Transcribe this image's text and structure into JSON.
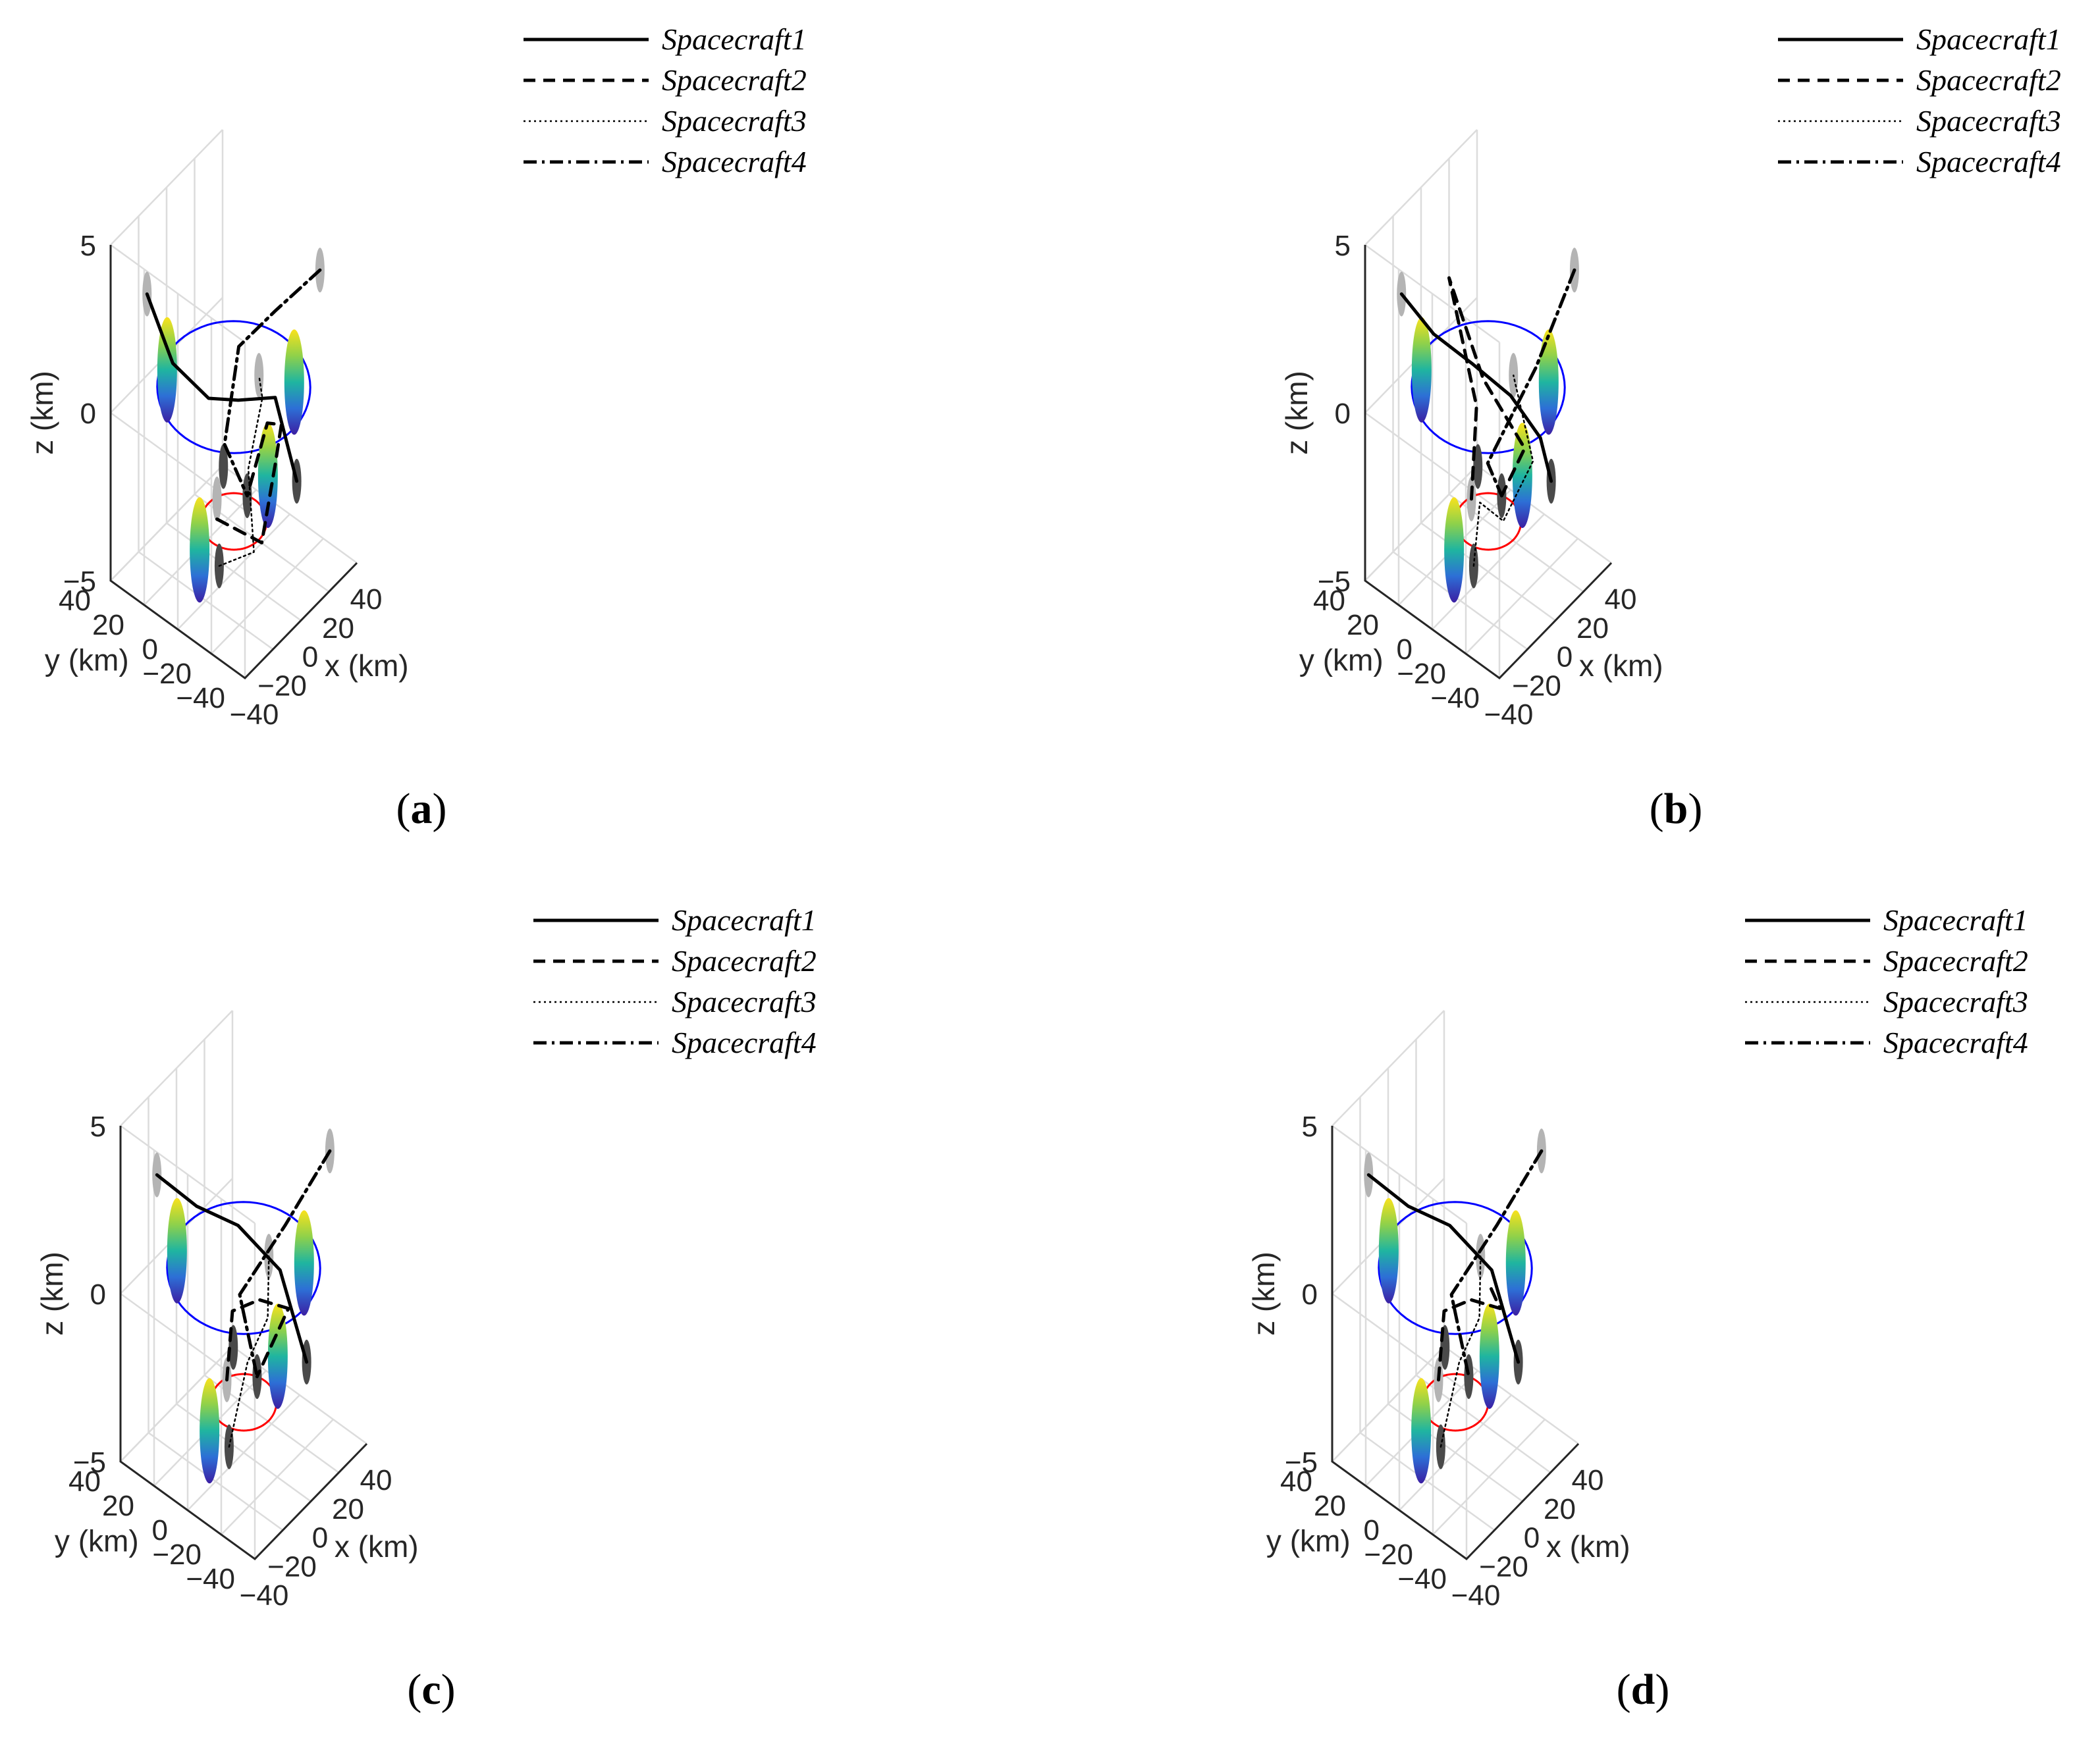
{
  "figure": {
    "panels": [
      {
        "caption_label": "a",
        "chart_data": {
          "type": "line3d",
          "title": "",
          "xlabel": "x (km)",
          "ylabel": "y (km)",
          "zlabel": "z (km)",
          "xlim": [
            -40,
            40
          ],
          "ylim": [
            -40,
            40
          ],
          "zlim": [
            -5,
            5
          ],
          "xticks": [
            "−40",
            "−20",
            "0",
            "20",
            "40"
          ],
          "yticks": [
            "−40",
            "−20",
            "0",
            "20",
            "40"
          ],
          "zticks": [
            "−5",
            "0",
            "5"
          ],
          "legend": [
            "Spacecraft1",
            "Spacecraft2",
            "Spacecraft3",
            "Spacecraft4"
          ],
          "series": [
            {
              "name": "Spacecraft1",
              "style": "solid",
              "points": [
                [
                  -26,
                  30,
                  3.3
                ],
                [
                  -22,
                  18,
                  1.5
                ],
                [
                  -12,
                  5,
                  0.5
                ],
                [
                  -4,
                  -6,
                  0.5
                ],
                [
                  8,
                  -18,
                  0.5
                ],
                [
                  9,
                  -30,
                  -1.6
                ]
              ]
            },
            {
              "name": "Spacecraft2",
              "style": "dashed",
              "points": [
                [
                  -30,
                  -15,
                  -1.6
                ],
                [
                  -10,
                  -25,
                  -2.8
                ],
                [
                  8,
                  -18,
                  -1.5
                ],
                [
                  22,
                  -10,
                  -1.2
                ],
                [
                  24,
                  0,
                  -1.6
                ],
                [
                  24,
                  12,
                  -4.2
                ]
              ]
            },
            {
              "name": "Spacecraft3",
              "style": "dotted",
              "points": [
                [
                  -32,
                  -18,
                  -2.8
                ],
                [
                  -12,
                  -22,
                  -3.1
                ],
                [
                  8,
                  -2,
                  -2.2
                ],
                [
                  30,
                  8,
                  -1.4
                ],
                [
                  30,
                  10,
                  -0.8
                ]
              ]
            },
            {
              "name": "Spacecraft4",
              "style": "dashdot",
              "points": [
                [
                  28,
                  -28,
                  3.8
                ],
                [
                  20,
                  -8,
                  2.2
                ],
                [
                  18,
                  12,
                  0.5
                ],
                [
                  15,
                  18,
                  -2.5
                ],
                [
                  24,
                  12,
                  -4.2
                ]
              ]
            }
          ],
          "orbits": [
            {
              "name": "outer",
              "color": "#0000ff",
              "radius": 35,
              "z": 0.5
            },
            {
              "name": "inner",
              "color": "#ff0000",
              "radius": 15,
              "z": -3.5
            }
          ]
        }
      },
      {
        "caption_label": "b",
        "chart_data": {
          "type": "line3d",
          "title": "",
          "xlabel": "x (km)",
          "ylabel": "y (km)",
          "zlabel": "z (km)",
          "xlim": [
            -40,
            40
          ],
          "ylim": [
            -40,
            40
          ],
          "zlim": [
            -5,
            5
          ],
          "xticks": [
            "−40",
            "−20",
            "0",
            "20",
            "40"
          ],
          "yticks": [
            "−40",
            "−20",
            "0",
            "20",
            "40"
          ],
          "zticks": [
            "−5",
            "0",
            "5"
          ],
          "legend": [
            "Spacecraft1",
            "Spacecraft2",
            "Spacecraft3",
            "Spacecraft4"
          ],
          "series": [
            {
              "name": "Spacecraft1",
              "style": "solid",
              "points": [
                [
                  -26,
                  30,
                  3.3
                ],
                [
                  -15,
                  20,
                  2.0
                ],
                [
                  -2,
                  8,
                  1.0
                ],
                [
                  10,
                  -5,
                  0.0
                ],
                [
                  18,
                  -16,
                  -1.2
                ],
                [
                  9,
                  -30,
                  -1.6
                ]
              ]
            },
            {
              "name": "Spacecraft2",
              "style": "dashed",
              "points": [
                [
                  -30,
                  -15,
                  -1.0
                ],
                [
                  -18,
                  -8,
                  1.0
                ],
                [
                  -4,
                  20,
                  3.2
                ],
                [
                  6,
                  8,
                  0.2
                ],
                [
                  20,
                  -5,
                  -2.0
                ],
                [
                  24,
                  12,
                  -4.2
                ]
              ]
            },
            {
              "name": "Spacecraft3",
              "style": "dotted",
              "points": [
                [
                  -32,
                  -18,
                  -2.8
                ],
                [
                  -18,
                  -10,
                  -1.8
                ],
                [
                  6,
                  -4,
                  -3.6
                ],
                [
                  20,
                  -10,
                  -2.2
                ],
                [
                  30,
                  10,
                  -0.8
                ]
              ]
            },
            {
              "name": "Spacecraft4",
              "style": "dashdot",
              "points": [
                [
                  28,
                  -28,
                  3.8
                ],
                [
                  22,
                  -10,
                  0.5
                ],
                [
                  14,
                  12,
                  -2.8
                ],
                [
                  24,
                  12,
                  -4.2
                ]
              ]
            }
          ],
          "orbits": [
            {
              "name": "outer",
              "color": "#0000ff",
              "radius": 35,
              "z": 0.5
            },
            {
              "name": "inner",
              "color": "#ff0000",
              "radius": 15,
              "z": -3.5
            }
          ]
        }
      },
      {
        "caption_label": "c",
        "chart_data": {
          "type": "line3d",
          "title": "",
          "xlabel": "x (km)",
          "ylabel": "y (km)",
          "zlabel": "z (km)",
          "xlim": [
            -40,
            40
          ],
          "ylim": [
            -40,
            40
          ],
          "zlim": [
            -5,
            5
          ],
          "xticks": [
            "−40",
            "−20",
            "0",
            "20",
            "40"
          ],
          "yticks": [
            "−40",
            "−20",
            "0",
            "20",
            "40"
          ],
          "zticks": [
            "−5",
            "0",
            "5"
          ],
          "legend": [
            "Spacecraft1",
            "Spacecraft2",
            "Spacecraft3",
            "Spacecraft4"
          ],
          "series": [
            {
              "name": "Spacecraft1",
              "style": "solid",
              "points": [
                [
                  -26,
                  30,
                  3.3
                ],
                [
                  -12,
                  18,
                  2.2
                ],
                [
                  2,
                  5,
                  1.5
                ],
                [
                  14,
                  -10,
                  0.2
                ],
                [
                  9,
                  -30,
                  -1.6
                ]
              ]
            },
            {
              "name": "Spacecraft2",
              "style": "dashed",
              "points": [
                [
                  -30,
                  -15,
                  -1.0
                ],
                [
                  -14,
                  -5,
                  0.0
                ],
                [
                  4,
                  -6,
                  -0.4
                ],
                [
                  20,
                  -10,
                  -1.2
                ],
                [
                  24,
                  12,
                  -4.2
                ]
              ]
            },
            {
              "name": "Spacecraft3",
              "style": "dotted",
              "points": [
                [
                  -32,
                  -18,
                  -2.8
                ],
                [
                  -14,
                  -14,
                  -1.2
                ],
                [
                  10,
                  -6,
                  -1.2
                ],
                [
                  30,
                  10,
                  -0.8
                ]
              ]
            },
            {
              "name": "Spacecraft4",
              "style": "dashdot",
              "points": [
                [
                  28,
                  -28,
                  3.8
                ],
                [
                  20,
                  -8,
                  1.2
                ],
                [
                  14,
                  14,
                  -1.4
                ],
                [
                  24,
                  12,
                  -4.2
                ]
              ]
            }
          ],
          "orbits": [
            {
              "name": "outer",
              "color": "#0000ff",
              "radius": 35,
              "z": 0.5
            },
            {
              "name": "inner",
              "color": "#ff0000",
              "radius": 15,
              "z": -3.5
            }
          ]
        }
      },
      {
        "caption_label": "d",
        "chart_data": {
          "type": "line3d",
          "title": "",
          "xlabel": "x (km)",
          "ylabel": "y (km)",
          "zlabel": "z (km)",
          "xlim": [
            -40,
            40
          ],
          "ylim": [
            -40,
            40
          ],
          "zlim": [
            -5,
            5
          ],
          "xticks": [
            "−40",
            "−20",
            "0",
            "20",
            "40"
          ],
          "yticks": [
            "−40",
            "−20",
            "0",
            "20",
            "40"
          ],
          "zticks": [
            "−5",
            "0",
            "5"
          ],
          "legend": [
            "Spacecraft1",
            "Spacecraft2",
            "Spacecraft3",
            "Spacecraft4"
          ],
          "series": [
            {
              "name": "Spacecraft1",
              "style": "solid",
              "points": [
                [
                  -26,
                  30,
                  3.3
                ],
                [
                  -12,
                  18,
                  2.2
                ],
                [
                  2,
                  5,
                  1.5
                ],
                [
                  14,
                  -10,
                  0.2
                ],
                [
                  9,
                  -30,
                  -1.6
                ]
              ]
            },
            {
              "name": "Spacecraft2",
              "style": "dashed",
              "points": [
                [
                  -30,
                  -15,
                  -1.0
                ],
                [
                  -14,
                  -5,
                  0.0
                ],
                [
                  4,
                  -6,
                  -0.4
                ],
                [
                  20,
                  -10,
                  -1.2
                ],
                [
                  24,
                  0,
                  -1.0
                ]
              ]
            },
            {
              "name": "Spacecraft3",
              "style": "dotted",
              "points": [
                [
                  -32,
                  -18,
                  -2.8
                ],
                [
                  -14,
                  -14,
                  -1.2
                ],
                [
                  10,
                  -6,
                  -1.2
                ],
                [
                  30,
                  10,
                  -0.8
                ]
              ]
            },
            {
              "name": "Spacecraft4",
              "style": "dashdot",
              "points": [
                [
                  28,
                  -28,
                  3.8
                ],
                [
                  20,
                  -8,
                  1.2
                ],
                [
                  14,
                  14,
                  -1.4
                ],
                [
                  24,
                  12,
                  -4.2
                ]
              ]
            }
          ],
          "orbits": [
            {
              "name": "outer",
              "color": "#0000ff",
              "radius": 35,
              "z": 0.5
            },
            {
              "name": "inner",
              "color": "#ff0000",
              "radius": 15,
              "z": -3.5
            }
          ]
        }
      }
    ]
  }
}
